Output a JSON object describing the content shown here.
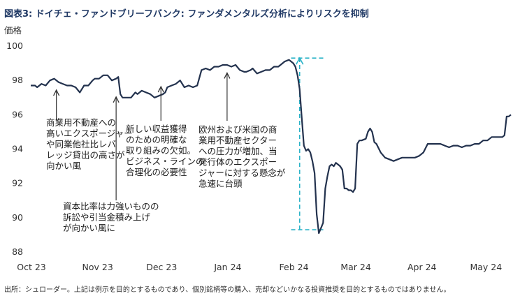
{
  "chart_data": {
    "type": "line",
    "title": "図表3: ドイチェ・ファンドブリーフバンク: ファンダメンタルズ分析によりリスクを抑制",
    "ylabel": "価格",
    "xlabel": "",
    "ylim": [
      88,
      100
    ],
    "yticks": [
      88,
      90,
      92,
      94,
      96,
      98,
      100
    ],
    "xlim": [
      0,
      225
    ],
    "xticks": [
      {
        "label": "Oct 23",
        "x": 0
      },
      {
        "label": "Nov 23",
        "x": 31
      },
      {
        "label": "Dec 23",
        "x": 61
      },
      {
        "label": "Jan 24",
        "x": 92
      },
      {
        "label": "Feb 24",
        "x": 123
      },
      {
        "label": "Mar 24",
        "x": 152
      },
      {
        "label": "Apr 24",
        "x": 183
      },
      {
        "label": "May 24",
        "x": 213
      }
    ],
    "line_color": "#23324e",
    "accent_color": "#2bb3c8",
    "series": [
      {
        "name": "ドイチェ・ファンドブリーフバンク 価格",
        "x": [
          0,
          2,
          3,
          5,
          7,
          9,
          11,
          13,
          15,
          17,
          19,
          21,
          23,
          25,
          27,
          29,
          30,
          32,
          34,
          36,
          38,
          40,
          41,
          42,
          43,
          45,
          47,
          49,
          50,
          52,
          54,
          56,
          58,
          60,
          62,
          63,
          64,
          66,
          68,
          70,
          72,
          74,
          76,
          78,
          80,
          82,
          84,
          86,
          88,
          90,
          92,
          94,
          96,
          98,
          100,
          101,
          103,
          104,
          106,
          108,
          110,
          112,
          114,
          116,
          118,
          119,
          121,
          122,
          123,
          124,
          125,
          126,
          127,
          128,
          129,
          130,
          131,
          132,
          133,
          134,
          135,
          136,
          137,
          138,
          139,
          140,
          141,
          142,
          143,
          144,
          145,
          146,
          147,
          148,
          149,
          150,
          151,
          152,
          153,
          154,
          155,
          157,
          158,
          159,
          160,
          161,
          162,
          164,
          166,
          168,
          170,
          172,
          174,
          176,
          178,
          180,
          182,
          184,
          186,
          188,
          190,
          192,
          194,
          196,
          198,
          200,
          202,
          204,
          206,
          208,
          210,
          212,
          214,
          216,
          218,
          220,
          221,
          222,
          223,
          224,
          225
        ],
        "values": [
          97.7,
          97.7,
          97.6,
          97.8,
          97.7,
          98.0,
          98.1,
          97.9,
          97.8,
          97.7,
          97.7,
          97.6,
          97.3,
          97.7,
          97.7,
          98.0,
          98.1,
          98.1,
          98.3,
          98.3,
          98.0,
          98.1,
          98.2,
          97.2,
          97.0,
          97.0,
          97.0,
          97.3,
          97.2,
          97.4,
          97.3,
          97.2,
          97.0,
          97.1,
          97.2,
          97.3,
          97.6,
          97.7,
          97.8,
          98.0,
          97.6,
          97.7,
          97.6,
          97.7,
          98.6,
          98.7,
          98.6,
          98.8,
          98.8,
          98.9,
          98.9,
          98.8,
          98.9,
          98.6,
          98.5,
          98.5,
          98.6,
          98.7,
          98.4,
          98.5,
          98.6,
          98.6,
          98.8,
          98.8,
          99.0,
          99.1,
          99.2,
          99.1,
          99.0,
          98.8,
          98.3,
          97.5,
          95.8,
          94.2,
          93.9,
          94.0,
          93.8,
          93.3,
          92.6,
          90.2,
          89.1,
          89.4,
          89.7,
          91.7,
          92.4,
          93.0,
          93.1,
          93.0,
          93.2,
          93.1,
          93.0,
          92.8,
          91.7,
          91.7,
          91.6,
          91.6,
          91.5,
          91.7,
          94.3,
          94.5,
          94.5,
          94.6,
          95.0,
          95.2,
          95.0,
          94.4,
          94.3,
          93.8,
          93.5,
          93.4,
          93.3,
          93.4,
          93.5,
          93.5,
          93.5,
          93.5,
          93.6,
          93.8,
          94.3,
          94.3,
          94.3,
          94.3,
          94.2,
          94.1,
          94.2,
          94.2,
          94.1,
          94.2,
          94.2,
          94.3,
          94.3,
          94.5,
          94.5,
          94.7,
          94.7,
          94.7,
          94.7,
          94.8,
          95.9,
          95.9,
          96.0
        ]
      }
    ],
    "reference_lines": [
      {
        "type": "horizontal",
        "y": 99.3,
        "x_from": 122,
        "x_to": 138
      },
      {
        "type": "horizontal",
        "y": 89.3,
        "x_from": 122,
        "x_to": 138
      },
      {
        "type": "vertical",
        "x": 126,
        "y_from": 89.3,
        "y_to": 99.3
      }
    ],
    "annotations": [
      {
        "id": "cre-exposure",
        "lines": [
          "商業用不動産への",
          "高いエクスポージャー",
          "や同業他社比レバ",
          "レッジ貸出の高さが",
          "向かい風"
        ],
        "arrow_x": 12,
        "arrow_y": 97.6
      },
      {
        "id": "capital-ratio",
        "lines": [
          "資本比率は力強いものの",
          "訴訟や引当金積み上げ",
          "が向かい風に"
        ],
        "arrow_x": 40,
        "arrow_y": 97.2
      },
      {
        "id": "profit-sources",
        "lines": [
          "新しい収益獲得",
          "のための明確な",
          "取り組みの欠如。",
          "ビジネス・ラインの",
          "合理化の必要性"
        ],
        "arrow_x": 61,
        "arrow_y": 97.8
      },
      {
        "id": "cre-pressure",
        "lines": [
          "欧州および米国の商",
          "業用不動産セクター",
          "への圧力が増加、当",
          "発行体のエクスポー",
          "ジャーに対する懸念が",
          "急速に台頭"
        ],
        "arrow_x": 92,
        "arrow_y": 98.6
      }
    ],
    "source_note": "出所：シュローダー。上記は例示を目的とするものであり、個別銘柄等の購入、売却などいかなる投資推奨を目的とするものではありません。"
  }
}
